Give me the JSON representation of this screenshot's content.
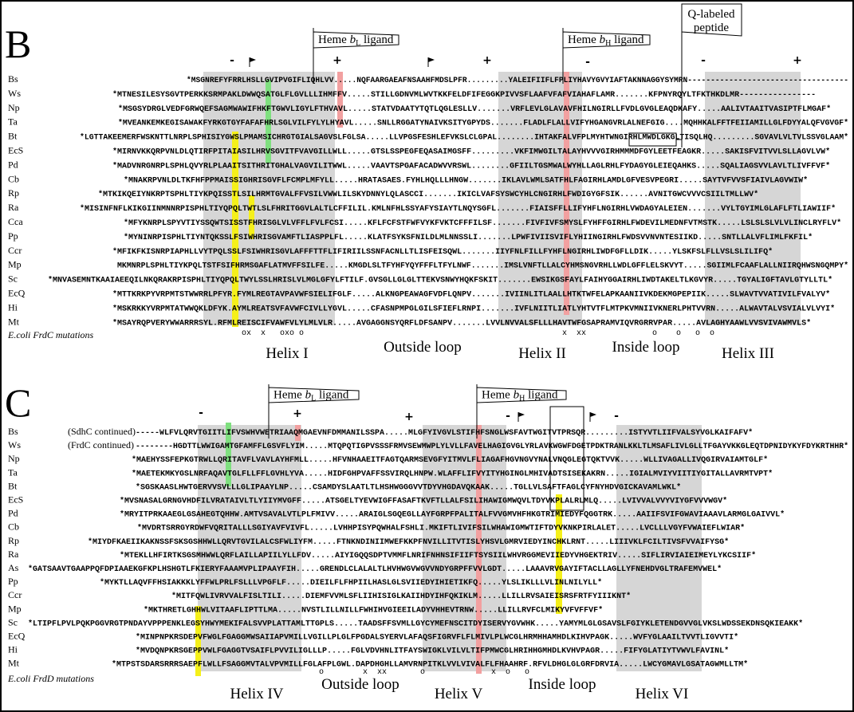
{
  "panels": [
    {
      "letter": "B",
      "flags": [
        {
          "prefix": "Heme ",
          "italic": "b",
          "sub": "L",
          "suffix": " ligand"
        },
        {
          "prefix": "Heme ",
          "italic": "b",
          "sub": "H",
          "suffix": " ligand"
        }
      ],
      "annotation": "Q-labeled peptide",
      "charges": [
        "-",
        "+",
        "+",
        "-",
        "-",
        "+"
      ],
      "rows": [
        {
          "species": "Bs",
          "sequence": "*MSGNREFYFRRLHSLLGVIPVGIFLIQHLVV.....NQFAARGAEAFNSAAHFMDSLPFR.........YALEIFIIFLFPLIYHAVYGVYIAFTAKNNAGGYSYMRN-----------------------------------"
        },
        {
          "species": "Ws",
          "sequence": "*MTNESILESYSGVTPERKKSRMPAKLDWWQSATGLFLGVLLLIHMFFV.....STILLGDNVMLWVTKKFELDFIFEGGKPIVVSFLAAFVFAFVIAHAFLAMR.......KFPNYRQYLTFKTHKDLMR----------------"
        },
        {
          "species": "Np",
          "sequence": "*MSGSYDRGLVEDFGRWQEFSAGMWAWIFHKFTGWVLIGYLFTHVAVL.....STATVDAATYTQTLQGLESLLV.......VRFLEVLGLAVAVFHILNGIRLLFVDLGVGLEAQDKAFY.....AALIVTAAITVASIPTFLMGAF*"
        },
        {
          "species": "Ta",
          "sequence": "*MVEANKEMKEGISAWAKFYRKGTGYFAFAFHRLSGLVILFYLYLHYAVL.....SNLLRGGATYNAIVKSITYGPYDS.......FLADLFLALLVIFYHGANGVRLALNEFGIG....MQHHKALFFTFEIIAMILLGLFDYYALQFVGVGF*"
        },
        {
          "species": "Bt",
          "sequence": "*LGTTAKEEMERFWSKNTTLNRPLSPHISIYGWSLPMAMSICHRGTGIALSAGVSLFGLSA.....LLVPGSFESHLEFVKSLCLGPAL........IHTAKFALVFPLMYHTWNGIRHLMWDLGKGLTISQLHQ.........SGVAVLVLTVLSSVGLAAM*"
        },
        {
          "species": "EcS",
          "sequence": "*MIRNVKKQRPVNLDLQTIRFPITAIASILHRVSGVITFVAVGILLWLL.....GTSLSSPEGFEQASAIMGSFF.........VKFIMWGILTALAYHVVVGIRHMMMDFGYLEETFEAGKR.....SAKISFVITVVLSLLAGVLVW*"
        },
        {
          "species": "Pd",
          "sequence": "*MADVNRGNRPLSPHLQVYRLPLAAITSITHRITGHALVAGVILITWWL.....VAAVTSPGAFACADWVVRSWL........GFIILTGSMWALWYHLLAGLRHLFYDAGYGLEIEQAHKS.....SQALIAGSVVLAVLTLIVFFVF*"
        },
        {
          "species": "Cb",
          "sequence": "*MNAKRPVNLDLTKFHFPPMAISSIGHRISGVFLFCMPLMFYLL.....HRATASAES.FYHLHQLLLHNGW.......IKLAVLWMLSATFHLFAGIRHLAMDLGFVESVPEGRI.....SAYTVFVVSFIAIVLAGVWIW*"
        },
        {
          "species": "Rp",
          "sequence": "*MTKIKQEIYNKRPTSPHLTIYKPQISSTLSILHRMTGVALFFVSILVWWLILSKYDNNYLQLASCCI.......IKICLVAFSYSWCYHLCNGIRHLFWDIGYGFSIK......AVNITGWCVVVCSIILTMLLWV*"
        },
        {
          "species": "Ra",
          "sequence": "*MISINFNFLKIKGIINMNNRPISPHLTIYQPQLTWTLSLFHRITGGVLALTLCFFILIL.KMLNFHLSSYAFYSIAYTLNQYSGFL.......FIAISFFLLIFYHFLNGIRHLVWDAGYALEIEN.......VYLTGYIMLGLAFLFTLIAWIIF*"
        },
        {
          "species": "Cca",
          "sequence": "*MFYKNRPLSPYVTIYSSQWTSISSTFHRISGLVLVFFLFVLFCSI.....KFLFCFSTFWFVYKFVKTCFFFILSF.......FIVFIVFSMYSLFYHFFGIRHLFWDEVILMEDNFVTMSTK.....LSLSLSLVLVLINCLRYFLV*"
        },
        {
          "species": "Pp",
          "sequence": "*MYNINRPISPHLTIYNTQKSSLFSIWHRISGVAMFTLIASPPLFL.....KLATFSYKSFNILDLMLNNSSLI.......LPWFIVIISVIFLYHIINGIRHLFWDSVVNVNTESIIKD.....SNTLLALVFLIMLFKFIL*"
        },
        {
          "species": "Ccr",
          "sequence": "*MFIKFKISNRPIAPHLLVYTPQLSSLFSIWHRISGVLAFFFTTFLIFIRIILSSNFACNLLTLISFEISQWL.......IIYFNLFILLFYHFLNGIRHLIWDFGFLLDIK.....YLSKFSLFLLVSLSLILIFQ*"
        },
        {
          "species": "Mp",
          "sequence": "MKMNRPLSPHLTIYKPQLTSTFSIFHRMSGAFLATMVFFSILFE.....KMGDLSLTFYHFYQYFFFLTFYLNWF.......IMSLVNFTLLALCYHMSNGVRHLLWDLGFFLELSKVYT.....SGIIMLFCAAFLALLNIIRQHWSNGQMPY*"
        },
        {
          "species": "Sc",
          "sequence": "*MNVASEMNTKAAIAEEQILNKQRAKRPISPHLTIYQPQLTWYLSSLHRISLVLMGLGFYLFTILF.GVSGLLGLGLTTEKVSNWYHQKFSKIT.......EWSIKGSFAYLFAIHYGGAIRHLIWDTAKELTLKGVYR.....TGYALIGFTAVLGTYLLTL*"
        },
        {
          "species": "EcQ",
          "sequence": "*MTTKRKPYVRPMTSTWWRRLPFYR.FYMLREGTAVPAVWFSIELIFGLF.....ALKNGPEAWAGFVDFLQNPV.......IVIINLITLAALLHTKTWFELAPKAANIIVKDEKMGPEPIIK.....SLWAVTVVATIVILFVALYV*"
        },
        {
          "species": "Hi",
          "sequence": "*MSKRKKYVRPMTATWWQKLDFYK.AYMLREATSVFAVWFCIVLLYGVL.....CFASNPMPGLGILSFIEFLRNPI.......IVFLNIITLIATLYHTVTFLMTPKVMNIIVKNERLPHTVVRN.....ALWAVTALVSVIALVLVYI*"
        },
        {
          "species": "Mt",
          "sequence": "*MSAYRQPVERYWWARRRSYL.RFMLREISCIFVAWFVLYLMLVLR.....AVGAGGNSYQRFLDFSANPV.......LVVLNVVALSFLLLHAVTWFGSAPRAMVIQVRGRRVPAR.....AVLAGHYAAWLVVSVIVAWMVLS*"
        }
      ],
      "mutation_label": "E.coli FrdC mutations",
      "mutation_marks": [
        "ox  x   oxo o",
        "x  xx",
        "o    o   o  o"
      ],
      "regions": [
        "Helix I",
        "Outside loop",
        "Helix II",
        "Inside loop",
        "Helix III"
      ]
    },
    {
      "letter": "C",
      "flags": [
        {
          "prefix": "Heme ",
          "italic": "b",
          "sub": "L",
          "suffix": " ligand"
        },
        {
          "prefix": "Heme ",
          "italic": "b",
          "sub": "H",
          "suffix": " ligand"
        }
      ],
      "charges": [
        "-",
        "+",
        "+",
        "-",
        "-"
      ],
      "rows": [
        {
          "species": "Bs",
          "prefix": "(SdhC continued)",
          "sequence": "-----WLFVLQRVTGIITLIFVSWHVWETRIAAQMGAEVNFDMMANILSSPA.....MLGFYIVGVLSTIFHFSNGLWSFAVTWGITVTPRSQR.........ISTYVTLIIFVALSYVGLKAIFAFV*"
        },
        {
          "species": "Ws",
          "prefix": "(FrdC continued)",
          "sequence": "--------HGDTTLWWIGAMTGFAMFFLGSVFLYIM.....MTQPQTIGPVSSSFRMVSEWMWPLYLVLLFAVELHAGIGVGLYRLAVKWGWFDGETPDKTRANLKKLTLMSAFLIVLGLLTFGAYVKKGLEQTDPNIDYKYFDYKRTHHR*"
        },
        {
          "species": "Np",
          "sequence": "*MAEHYSSFEPKGTRWLLQRITAVFLVAVLAYHFMLL.....HFVNHAAEITFAGTQARMSEVGFYITMVLFLIAGAFHGVNGVYNALVNQGLEGTQKTVVK.....WLLIVAGALLIVQGIRVAIAMTGLF*"
        },
        {
          "species": "Ta",
          "sequence": "*MAETEKMKYGSLNRFAQAVTGLFLLFFLGVHLYVA.....HIDFGHPVAFFSSVIRQLHNPW.WLAFFLIFVYITYHGINGLMHIVADTSISEKAKRN.....IGIALMVIYVIITIYGITALLAVRMTVPT*"
        },
        {
          "species": "Bt",
          "sequence": "*SGSKAASLHWTGERVVSVLLLGLIPAAYLNP.....CSAMDYSLAATLTLHSHWGGGVVTDYVHGDAVQKAAK.....TGLLVLSAFTFAGLCYFNYHDVGICKAVAMLWKL*"
        },
        {
          "species": "EcS",
          "sequence": "*MVSNASALGRNGVHDFILVRATAIVLTLYIIYMVGFF.....ATSGELTYEVWIGFFASAFTKVFTLLALFSILIHAWIGMWQVLTDYVKPLALRLMLQ.....LVIVVALVVYVIYGFVVVWGV*"
        },
        {
          "species": "Pd",
          "sequence": "*MRYITPRKAAEGLGSAHEGTQHHW.AMTVSAVALVTLPLFMIVV.....ARAIGLSGQEGLLAYFGRPFPALITALFVVGMVHFHKGTRIMIEDYFQGGTRK.....AAIIFSVIFGWAVIAAAVLARMGLGAIVVL*"
        },
        {
          "species": "Cb",
          "sequence": "*MVDRTSRRGYRDWFVQRITALLLSGIYAVFVIVFL.....LVHHPISYPQWHALFSHLI.MKIFTLIVIFSILWHAWIGMWTIFTDYVKNKPIRLALET.....LVCLLLVGYFVWAIEFLWIAR*"
        },
        {
          "species": "Rp",
          "sequence": "*MIYDFKAEIIKAKNSSFSKSGSHHWLLQRVTGVILALCSFWLIYFM.....FTNKNDINIIMWEFKKPFNVILLITVTISLYHSVLGMRVIEDYINCHKLRNT.....LIIIVKLFCILTIVSFVVAIFYSG*"
        },
        {
          "species": "Ra",
          "sequence": "*MTEKLLHFIRTKSGSMHWWLQRFLAILLAPIILYLLFDV.....AIYIGQQSDPTVMMFLNRIFNHNSIFIIFTSYSIILWHVRGGMEVIIEDYVHGEKTRIV.....SIFLIRVIAIEIMEYLYKCSIIF*"
        },
        {
          "species": "As",
          "sequence": "*GATSAAVTGAAPPQFDPIAAEKGFKPLHSHGTLFKIERYFAAAMVPLIPAAYFIH.....GRENDLCLALALTLHVHWGVWGVVNDYGRPFFVVLGDT.....LAAAVRVGAYIFTACLLAGLLYFNEHDVGLTRAFEMVWEL*"
        },
        {
          "species": "Pp",
          "sequence": "*MYKTLLAQVFFHSIAKKKLYFFWLPRLFSLLLVPGFLF.....DIEILFLFHPIILHASLGLSVIIEDYIHIETIKFQ.....YLSLIKLLLVLINLNILYLL*"
        },
        {
          "species": "Ccr",
          "sequence": "*MITFQWLIVRVVALFISLTILI.....DIEMFVVMLSFLIIHISIGLKAIIHDYIHFQKIKLM.....LLILLRVSAIEISRSFRTFYIIIKNT*"
        },
        {
          "species": "Mp",
          "sequence": "*MKTHRETLGHHWLVITAAFLIPTTLMA.....NVSTLILLNILLFWHIHVGIEEILADYVHHEVTRNW.....LLILLRVFCLMIKYVFVFFVF*"
        },
        {
          "species": "Sc",
          "sequence": "*LTIPFLPVLPQKPGGVRGTPNDAYVPPPENKLEGSYHWYMEKIFALSVVPLATTAMLTTGPLS.....TAADSFFSVMLLGYCYMEFNSCITDYISERVYGVWHK.....YAMYMLGLGSAVSLFGIYKLETENDGVVGLVKSLWDSSEKDNSQKIEAKK*"
        },
        {
          "species": "EcQ",
          "sequence": "*MINPNPKRSDEPVFWGLFGAGGMWSAIIAPVMILLVGILLPLGLFPGDALSYERVLAFAQSFIGRVFLFLMIVLPLWCGLHRMHHAMHDLKIHVPAGK.....WVFYGLAAILTVVTLIGVVTI*"
        },
        {
          "species": "Hi",
          "sequence": "*MVDQNPKRSGEPPVWLFGAGGTVSAIFLPVVILIGLLLP.....FGLVDVHNLITFAYSWIGKLVILVLTIFPMWCGLHRIHHGMHDLKVHVPAGR.....FIFYGLATIYTVWVLFAVINL*"
        },
        {
          "species": "Mt",
          "sequence": "*MTPSTSDARSRRRSAEPFLWLLFSAGGMVTALVPVMILLFGLAFPLGWL.DAPDHGHLLAMVRNPITKLVVLVIVALFLFHAAHRF.RFVLDHGLGLGRFDRVIA.....LWCYGMAVLGSATAGWMLLTM*"
        }
      ],
      "mutation_label": "E.coli FrdD mutations",
      "mutation_marks": [
        "o",
        "x  xx",
        "o",
        "x  o   o"
      ],
      "regions": [
        "Helix IV",
        "Outside loop",
        "Helix V",
        "Inside loop",
        "Helix VI"
      ]
    }
  ]
}
